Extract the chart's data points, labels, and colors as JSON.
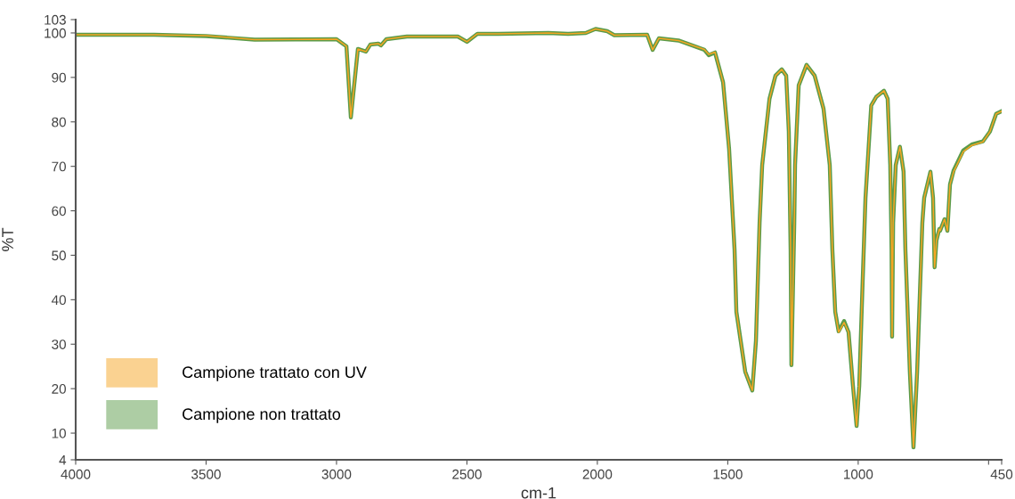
{
  "chart_data": {
    "type": "line",
    "xlabel": "cm-1",
    "ylabel": "%T",
    "xlim": [
      4000,
      450
    ],
    "ylim": [
      4,
      103
    ],
    "xticks": [
      4000,
      3500,
      3000,
      2500,
      2000,
      1500,
      1000,
      {
        "value": 500,
        "label": null
      },
      450
    ],
    "yticks": [
      4,
      10,
      20,
      30,
      40,
      50,
      60,
      70,
      80,
      90,
      100,
      103
    ],
    "grid": false,
    "legend": "bottom left",
    "marker": "none",
    "line_style": "solid",
    "x": [
      4000,
      3700,
      3500,
      3314,
      3000,
      2962,
      2945,
      2918,
      2887,
      2870,
      2840,
      2830,
      2809,
      2730,
      2535,
      2500,
      2460,
      2379,
      2188,
      2112,
      2044,
      2007,
      1962,
      1935,
      1809,
      1788,
      1764,
      1689,
      1590,
      1573,
      1549,
      1518,
      1495,
      1474,
      1467,
      1433,
      1406,
      1392,
      1378,
      1368,
      1340,
      1317,
      1293,
      1276,
      1266,
      1259,
      1256,
      1245,
      1242,
      1228,
      1198,
      1167,
      1133,
      1109,
      1099,
      1088,
      1075,
      1054,
      1037,
      1020,
      1006,
      996,
      983,
      972,
      950,
      931,
      901,
      887,
      877,
      872,
      870,
      866,
      856,
      840,
      826,
      819,
      802,
      788,
      774,
      754,
      747,
      723,
      713,
      707,
      700,
      689,
      686,
      669,
      658,
      648,
      634,
      597,
      565,
      522,
      495,
      471,
      450
    ],
    "series": [
      {
        "name": "Campione non trattato",
        "color": "#5b9b4a",
        "values": [
          99.6,
          99.6,
          99.3,
          98.5,
          98.6,
          97,
          81,
          96.4,
          95.8,
          97.4,
          97.6,
          97.2,
          98.6,
          99.2,
          99.2,
          98,
          99.8,
          99.8,
          100,
          99.8,
          100,
          100.9,
          100.4,
          99.5,
          99.6,
          96.2,
          98.8,
          98.3,
          96.2,
          95,
          95.6,
          88.9,
          74,
          51.3,
          37.3,
          23.8,
          19.6,
          30.7,
          57.3,
          70.3,
          85.2,
          90.4,
          91.8,
          90.4,
          77.8,
          51.3,
          25.3,
          57.3,
          70.3,
          88.2,
          92.8,
          90.4,
          83,
          70.3,
          51.3,
          37.3,
          32.9,
          35.2,
          32.7,
          20.6,
          11.6,
          20.6,
          43.9,
          62.9,
          83.7,
          85.6,
          87,
          85.2,
          70.3,
          51.3,
          31.7,
          57.3,
          70.3,
          74.4,
          68.8,
          51.3,
          23.8,
          6.8,
          23.8,
          57.3,
          62.9,
          68.8,
          62.9,
          47.3,
          53.3,
          55.9,
          55.5,
          58.1,
          55.5,
          65.9,
          69.1,
          73.6,
          74.9,
          75.6,
          77.8,
          81.8,
          82.4
        ]
      },
      {
        "name": "Campione trattato con UV",
        "color": "#f5a623",
        "values": [
          99.6,
          99.6,
          99.4,
          98.5,
          98.6,
          97,
          81,
          96.4,
          95.8,
          97.4,
          97.6,
          97.2,
          98.6,
          99.2,
          99.2,
          98,
          99.8,
          99.8,
          100,
          99.8,
          100,
          100.9,
          100.4,
          99.5,
          99.6,
          96.2,
          98.8,
          98.3,
          96.3,
          95.2,
          95.7,
          88.9,
          74,
          51.3,
          37.3,
          23.8,
          19.6,
          30.7,
          57.3,
          70.3,
          85.2,
          90.4,
          91.8,
          90.4,
          77.8,
          51.3,
          25.3,
          57.3,
          70.3,
          88.2,
          92.8,
          90.4,
          83,
          70.3,
          51.3,
          37.3,
          32.7,
          34.9,
          32.7,
          20.6,
          11.6,
          20.6,
          43.9,
          62.9,
          83.7,
          85.6,
          87,
          85.2,
          70.3,
          51.3,
          31.7,
          57.3,
          70.3,
          74.4,
          68.8,
          51.3,
          23.8,
          6.8,
          23.8,
          57.3,
          62.9,
          68.8,
          62.9,
          47.3,
          53.3,
          55.9,
          55.5,
          58.1,
          55.5,
          65.9,
          68.8,
          73.3,
          74.7,
          75.5,
          77.8,
          81.8,
          82.4
        ]
      }
    ]
  }
}
